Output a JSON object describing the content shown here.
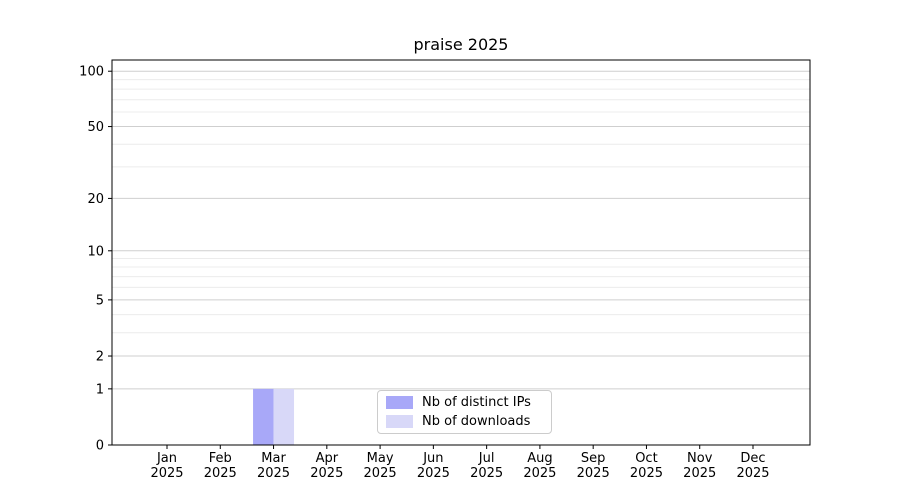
{
  "chart_data": {
    "type": "bar",
    "title": "praise 2025",
    "categories": [
      "Jan",
      "Feb",
      "Mar",
      "Apr",
      "May",
      "Jun",
      "Jul",
      "Aug",
      "Sep",
      "Oct",
      "Nov",
      "Dec"
    ],
    "category_sublabel": "2025",
    "series": [
      {
        "name": "Nb of distinct IPs",
        "color": "#a8a8f8",
        "values": [
          0,
          0,
          1,
          0,
          0,
          0,
          0,
          0,
          0,
          0,
          0,
          0
        ]
      },
      {
        "name": "Nb of downloads",
        "color": "#d8d8f8",
        "values": [
          0,
          0,
          1,
          0,
          0,
          0,
          0,
          0,
          0,
          0,
          0,
          0
        ]
      }
    ],
    "yscale": "log1p",
    "ylim": [
      0,
      115
    ],
    "yticks_major": [
      0,
      1,
      2,
      5,
      10,
      20,
      50,
      100
    ],
    "yticks_minor": [
      3,
      4,
      6,
      7,
      8,
      9,
      30,
      40,
      60,
      70,
      80,
      90
    ],
    "xlabel": "",
    "ylabel": "",
    "grid": "horizontal-major-and-minor",
    "legend_position": "lower-center-inside",
    "colors": {
      "axis": "#000000",
      "grid_major": "#cfcfcf",
      "grid_minor": "#ececec",
      "tick_label": "#000000",
      "background": "#ffffff"
    }
  }
}
